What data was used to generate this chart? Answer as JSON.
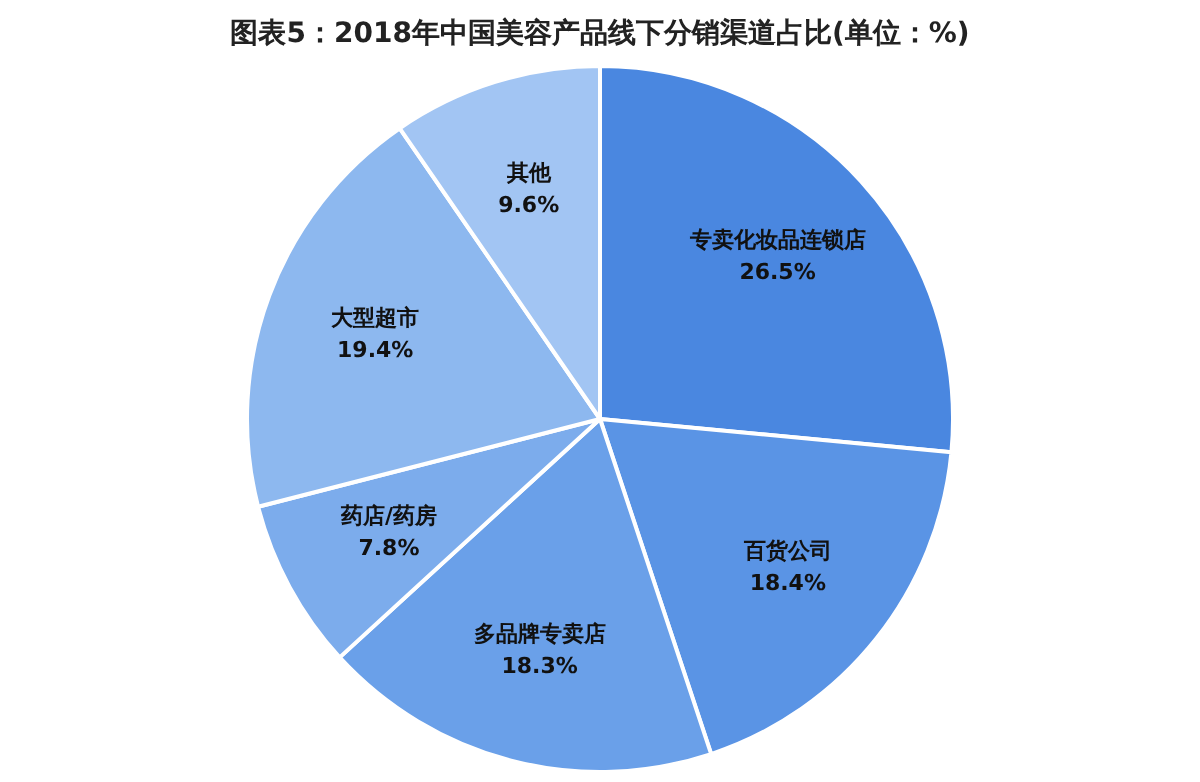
{
  "chart_data": {
    "type": "pie",
    "title": "图表5：2018年中国美容产品线下分销渠道占比(单位：%)",
    "categories": [
      "专卖化妆品连锁店",
      "百货公司",
      "多品牌专卖店",
      "药店/药房",
      "大型超市",
      "其他"
    ],
    "values": [
      26.5,
      18.4,
      18.3,
      7.8,
      19.4,
      9.6
    ],
    "value_labels": [
      "26.5%",
      "18.4%",
      "18.3%",
      "7.8%",
      "19.4%",
      "9.6%"
    ],
    "colors": [
      "#4a87e0",
      "#5a94e5",
      "#6aa0e9",
      "#7cacec",
      "#8db8ef",
      "#a2c5f3"
    ],
    "legend": false
  }
}
